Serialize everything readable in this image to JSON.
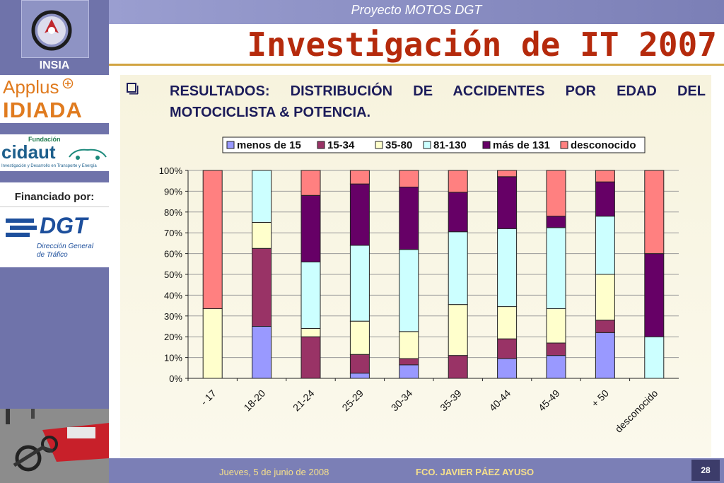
{
  "header": {
    "project": "Proyecto MOTOS DGT",
    "title": "Investigación de IT 2007"
  },
  "sidebar": {
    "insia_label": "INSIA",
    "applus_label": "Applus",
    "idiada_label": "IDIADA",
    "cidaut_fundacion": "Fundación",
    "cidaut_label": "cidaut",
    "cidaut_subtitle": "Investigación y Desarrollo en Transporte y Energía",
    "financed_label": "Financiado por:",
    "dgt_label": "DGT",
    "dgt_subtitle_1": "Dirección General",
    "dgt_subtitle_2": "de Tráfico"
  },
  "content": {
    "bullet": "q",
    "heading": "RESULTADOS: DISTRIBUCIÓN DE ACCIDENTES POR EDAD DEL MOTOCICLISTA & POTENCIA."
  },
  "footer": {
    "date": "Jueves, 5 de junio de 2008",
    "author": "FCO. JAVIER PÁEZ AYUSO",
    "page": "28"
  },
  "chart_data": {
    "type": "bar",
    "stacked": true,
    "categories": [
      "- 17",
      "18-20",
      "21-24",
      "25-29",
      "30-34",
      "35-39",
      "40-44",
      "45-49",
      "+ 50",
      "desconocido"
    ],
    "series": [
      {
        "name": "menos de 15",
        "color": "#9999ff",
        "values": [
          0,
          25,
          0,
          2.5,
          6.5,
          0,
          9.5,
          11,
          22,
          0
        ]
      },
      {
        "name": "15-34",
        "color": "#993366",
        "values": [
          0,
          37.5,
          20,
          9,
          3,
          11,
          9.5,
          6,
          6,
          0
        ]
      },
      {
        "name": "35-80",
        "color": "#ffffcc",
        "values": [
          33.5,
          12.5,
          4,
          16,
          13,
          24.5,
          15.5,
          16.5,
          22,
          0
        ]
      },
      {
        "name": "81-130",
        "color": "#ccffff",
        "values": [
          0,
          25,
          32,
          36.5,
          39.5,
          35,
          37.5,
          39,
          28,
          20
        ]
      },
      {
        "name": "más de 131",
        "color": "#660066",
        "values": [
          0,
          0,
          32,
          29.5,
          30,
          19,
          25,
          5.5,
          16.5,
          40
        ]
      },
      {
        "name": "desconocido",
        "color": "#ff8080",
        "values": [
          66.5,
          0,
          12,
          6.5,
          8,
          10.5,
          3,
          22,
          5.5,
          40
        ]
      }
    ],
    "ylim": [
      0,
      100
    ],
    "yticks": [
      "0%",
      "10%",
      "20%",
      "30%",
      "40%",
      "50%",
      "60%",
      "70%",
      "80%",
      "90%",
      "100%"
    ],
    "grid": true,
    "legend_position": "top"
  }
}
